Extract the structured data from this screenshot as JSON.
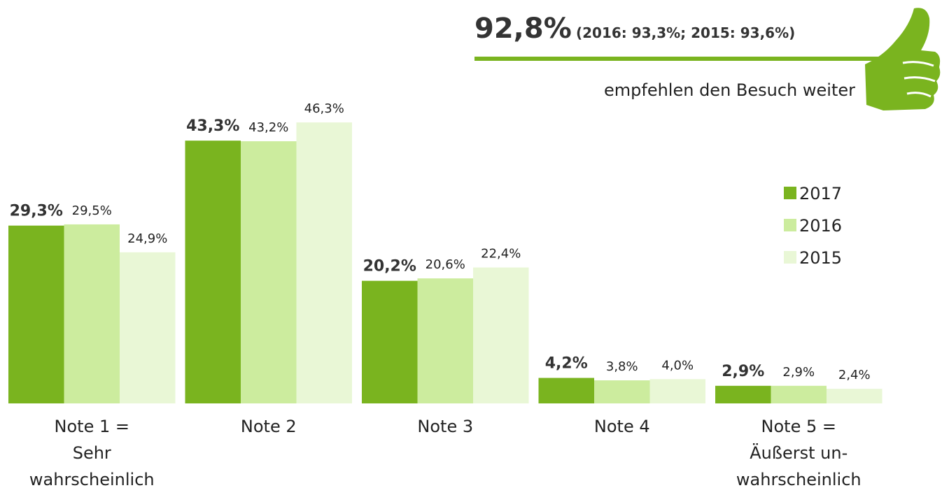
{
  "chart_data": {
    "type": "bar",
    "annotations": {
      "headline": "92,8%",
      "comparison": "(2016: 93,3%; 2015: 93,6%)",
      "caption": "empfehlen den Besuch weiter"
    },
    "categories": [
      [
        "Note 1 =",
        "Sehr",
        "wahrscheinlich"
      ],
      [
        "Note 2"
      ],
      [
        "Note 3"
      ],
      [
        "Note 4"
      ],
      [
        "Note 5 =",
        "Äußerst un-",
        "wahrscheinlich"
      ]
    ],
    "series": [
      {
        "name": "2017",
        "color": "#7ab41f",
        "values": [
          29.3,
          43.3,
          20.2,
          4.2,
          2.9
        ],
        "value_labels": [
          "29,3%",
          "43,3%",
          "20,2%",
          "4,2%",
          "2,9%"
        ]
      },
      {
        "name": "2016",
        "color": "#ccec9e",
        "values": [
          29.5,
          43.2,
          20.6,
          3.8,
          2.9
        ],
        "value_labels": [
          "29,5%",
          "43,2%",
          "20,6%",
          "3,8%",
          "2,9%"
        ]
      },
      {
        "name": "2015",
        "color": "#e9f7d6",
        "values": [
          24.9,
          46.3,
          22.4,
          4.0,
          2.4
        ],
        "value_labels": [
          "24,9%",
          "46,3%",
          "22,4%",
          "4,0%",
          "2,4%"
        ]
      }
    ],
    "legend": "right"
  }
}
